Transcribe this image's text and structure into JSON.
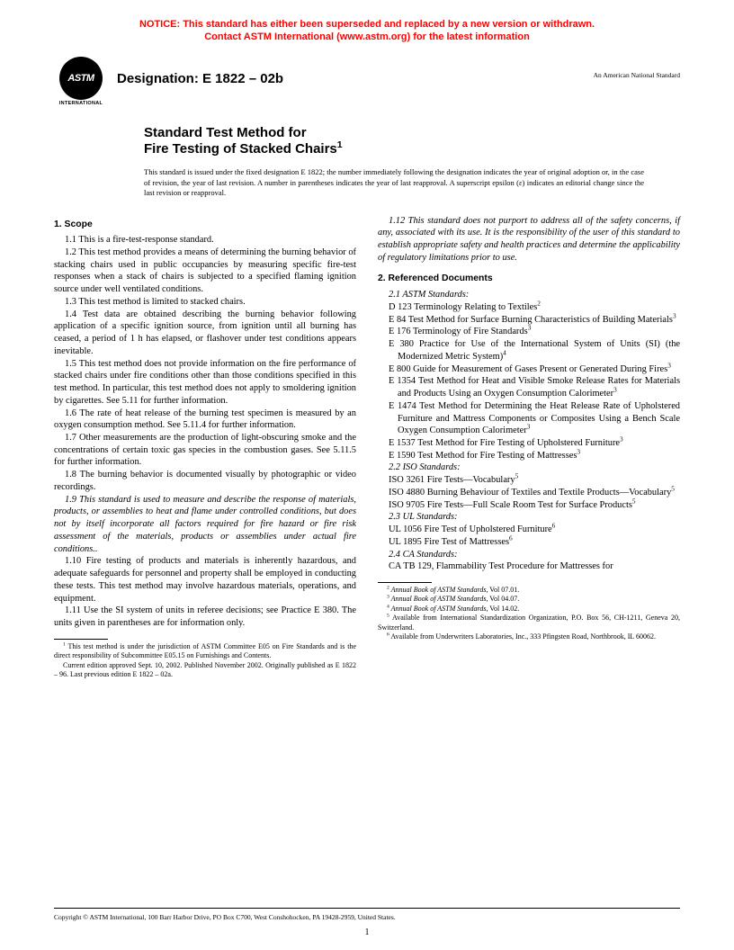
{
  "notice": {
    "color": "#ff0000",
    "line1": "NOTICE: This standard has either been superseded and replaced by a new version or withdrawn.",
    "line2": "Contact ASTM International (www.astm.org) for the latest information"
  },
  "logo": {
    "main": "ASTM",
    "sub": "INTERNATIONAL"
  },
  "designation": "Designation: E 1822 – 02b",
  "ans_label": "An American National Standard",
  "title": {
    "line1": "Standard Test Method for",
    "line2_pre": "Fire Testing of Stacked Chairs",
    "line2_sup": "1"
  },
  "issue_note": "This standard is issued under the fixed designation E 1822; the number immediately following the designation indicates the year of original adoption or, in the case of revision, the year of last revision. A number in parentheses indicates the year of last reapproval. A superscript epsilon (ε) indicates an editorial change since the last revision or reapproval.",
  "scope": {
    "heading": "1. Scope",
    "p1": "1.1 This is a fire-test-response standard.",
    "p2": "1.2 This test method provides a means of determining the burning behavior of stacking chairs used in public occupancies by measuring specific fire-test responses when a stack of chairs is subjected to a specified flaming ignition source under well ventilated conditions.",
    "p3": "1.3 This test method is limited to stacked chairs.",
    "p4": "1.4 Test data are obtained describing the burning behavior following application of a specific ignition source, from ignition until all burning has ceased, a period of 1 h has elapsed, or flashover under test conditions appears inevitable.",
    "p5": "1.5 This test method does not provide information on the fire performance of stacked chairs under fire conditions other than those conditions specified in this test method. In particular, this test method does not apply to smoldering ignition by cigarettes. See 5.11 for further information.",
    "p6": "1.6 The rate of heat release of the burning test specimen is measured by an oxygen consumption method. See 5.11.4 for further information.",
    "p7": "1.7 Other measurements are the production of light-obscuring smoke and the concentrations of certain toxic gas species in the combustion gases. See 5.11.5 for further information.",
    "p8": "1.8 The burning behavior is documented visually by photographic or video recordings.",
    "p9": "1.9 This standard is used to measure and describe the response of materials, products, or assemblies to heat and flame under controlled conditions, but does not by itself incorporate all factors required for fire hazard or fire risk assessment of the materials, products or assemblies under actual fire conditions..",
    "p10": "1.10 Fire testing of products and materials is inherently hazardous, and adequate safeguards for personnel and property shall be employed in conducting these tests. This test method may involve hazardous materials, operations, and equipment.",
    "p11": "1.11 Use the SI system of units in referee decisions; see Practice E 380. The units given in parentheses are for information only.",
    "p12": "1.12 This standard does not purport to address all of the safety concerns, if any, associated with its use. It is the responsibility of the user of this standard to establish appropriate safety and health practices and determine the applicability of regulatory limitations prior to use."
  },
  "refs": {
    "heading": "2. Referenced Documents",
    "s21": "2.1 ASTM Standards:",
    "astm": [
      {
        "t": "D 123  Terminology Relating to Textiles",
        "s": "2"
      },
      {
        "t": "E 84  Test Method for Surface Burning Characteristics of Building Materials",
        "s": "3"
      },
      {
        "t": "E 176  Terminology of Fire Standards",
        "s": "3"
      },
      {
        "t": "E 380  Practice for Use of the International System of Units (SI) (the Modernized Metric System)",
        "s": "4"
      },
      {
        "t": "E 800  Guide for Measurement of Gases Present or Generated During Fires",
        "s": "3"
      },
      {
        "t": "E 1354  Test Method for Heat and Visible Smoke Release Rates for Materials and Products Using an Oxygen Consumption Calorimeter",
        "s": "3"
      },
      {
        "t": "E 1474  Test Method for Determining the Heat Release Rate of Upholstered Furniture and Mattress Components or Composites Using a Bench Scale Oxygen Consumption Calorimeter",
        "s": "3"
      },
      {
        "t": "E 1537  Test Method for Fire Testing of Upholstered Furniture",
        "s": "3"
      },
      {
        "t": "E 1590  Test Method for Fire Testing of Mattresses",
        "s": "3"
      }
    ],
    "s22": "2.2 ISO Standards:",
    "iso": [
      {
        "t": "ISO 3261  Fire Tests—Vocabulary",
        "s": "5"
      },
      {
        "t": "ISO 4880 Burning Behaviour of Textiles and Textile Products—Vocabulary",
        "s": "5"
      },
      {
        "t": "ISO 9705 Fire Tests—Full Scale Room Test for Surface Products",
        "s": "5"
      }
    ],
    "s23": "2.3 UL Standards:",
    "ul": [
      {
        "t": "UL 1056  Fire Test of Upholstered Furniture",
        "s": "6"
      },
      {
        "t": "UL 1895  Fire Test of Mattresses",
        "s": "6"
      }
    ],
    "s24": "2.4 CA Standards:",
    "ca": [
      {
        "t": "CA TB 129,  Flammability Test Procedure for Mattresses for",
        "s": ""
      }
    ]
  },
  "footnotes_left": {
    "f1a_sup": "1",
    "f1a": " This test method is under the jurisdiction of ASTM Committee E05 on Fire Standards and is the direct responsibility of Subcommittee E05.15 on Furnishings and Contents.",
    "f1b": "Current edition approved Sept. 10, 2002. Published November 2002. Originally published as E 1822 – 96. Last previous edition E 1822 – 02a."
  },
  "footnotes_right": {
    "f2": {
      "s": "2",
      "t": " Annual Book of ASTM Standards",
      "tail": ", Vol 07.01."
    },
    "f3": {
      "s": "3",
      "t": " Annual Book of ASTM Standards",
      "tail": ", Vol 04.07."
    },
    "f4": {
      "s": "4",
      "t": " Annual Book of ASTM Standards",
      "tail": ", Vol 14.02."
    },
    "f5": {
      "s": "5",
      "t": " Available from International Standardization Organization, P.O. Box 56, CH-1211, Geneva 20, Switzerland."
    },
    "f6": {
      "s": "6",
      "t": " Available from Underwriters Laboratories, Inc., 333 Pfingsten Road, Northbrook, IL 60062."
    }
  },
  "copyright": "Copyright © ASTM International, 100 Barr Harbor Drive, PO Box C700, West Conshohocken, PA 19428-2959, United States.",
  "page_number": "1"
}
